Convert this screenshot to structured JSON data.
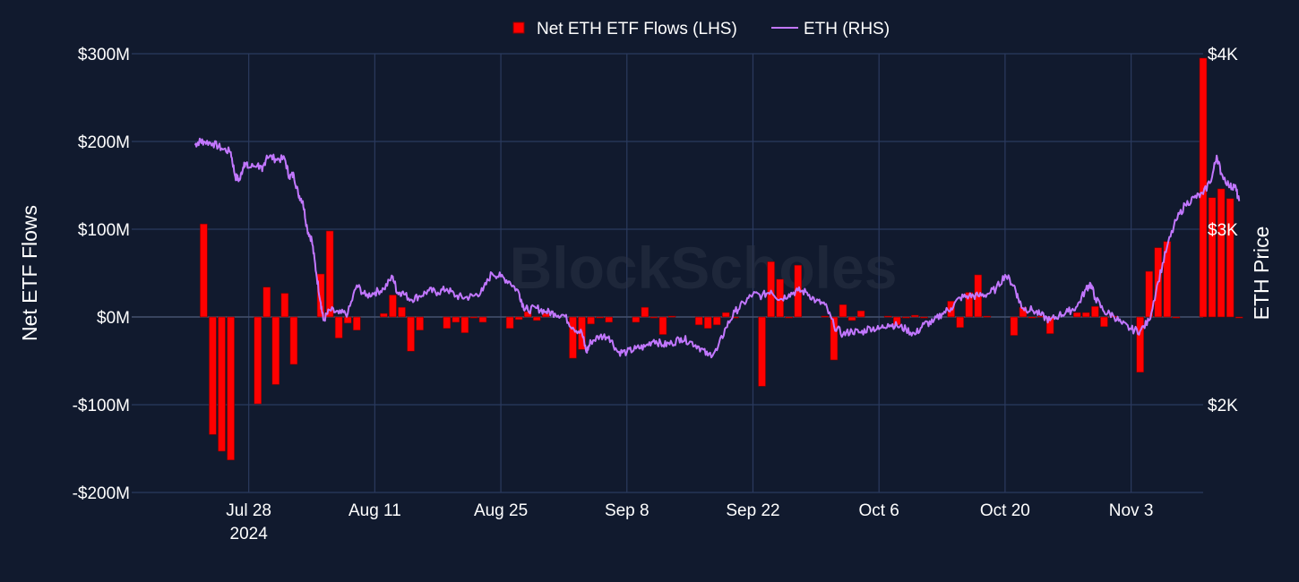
{
  "chart_data": {
    "type": "bar+line",
    "legend": [
      {
        "name": "Net ETH ETF Flows (LHS)",
        "color": "#ff0000",
        "marker": "square"
      },
      {
        "name": "ETH (RHS)",
        "color": "#c277ff",
        "marker": "line"
      }
    ],
    "watermark": "BlockScholes",
    "y_left": {
      "title": "Net ETF Flows",
      "range": [
        -200,
        300
      ],
      "unit": "USD millions",
      "ticks": [
        300,
        200,
        100,
        0,
        -100,
        -200
      ],
      "tick_labels": [
        "$300M",
        "$200M",
        "$100M",
        "$0M",
        "-$100M",
        "-$200M"
      ]
    },
    "y_right": {
      "title": "ETH Price",
      "range": [
        1500,
        4000
      ],
      "unit": "USD",
      "ticks": [
        4000,
        3000,
        2000
      ],
      "tick_labels": [
        "$4K",
        "$3K",
        "$2K"
      ]
    },
    "x": {
      "range_days": [
        -7,
        112
      ],
      "day0": "2024-07-22",
      "ticks": [
        {
          "day": 6,
          "label": "Jul 28",
          "sublabel": "2024"
        },
        {
          "day": 20,
          "label": "Aug 11"
        },
        {
          "day": 34,
          "label": "Aug 25"
        },
        {
          "day": 48,
          "label": "Sep 8"
        },
        {
          "day": 62,
          "label": "Sep 22"
        },
        {
          "day": 76,
          "label": "Oct 6"
        },
        {
          "day": 90,
          "label": "Oct 20"
        },
        {
          "day": 104,
          "label": "Nov 3"
        }
      ]
    },
    "flows_series": {
      "name": "Net ETH ETF Flows (LHS)",
      "unit": "USD millions",
      "points": [
        [
          1,
          106
        ],
        [
          2,
          -134
        ],
        [
          3,
          -153
        ],
        [
          4,
          -163
        ],
        [
          7,
          -99
        ],
        [
          8,
          34
        ],
        [
          9,
          -77
        ],
        [
          10,
          27
        ],
        [
          11,
          -54
        ],
        [
          14,
          49
        ],
        [
          15,
          98
        ],
        [
          16,
          -24
        ],
        [
          17,
          -7
        ],
        [
          18,
          -15
        ],
        [
          21,
          4
        ],
        [
          22,
          25
        ],
        [
          23,
          11
        ],
        [
          24,
          -39
        ],
        [
          25,
          -15
        ],
        [
          28,
          -13
        ],
        [
          29,
          -6
        ],
        [
          30,
          -18
        ],
        [
          31,
          0
        ],
        [
          32,
          -6
        ],
        [
          35,
          -13
        ],
        [
          36,
          -3
        ],
        [
          37,
          6
        ],
        [
          38,
          -4
        ],
        [
          39,
          4
        ],
        [
          42,
          -47
        ],
        [
          43,
          -37
        ],
        [
          44,
          -8
        ],
        [
          45,
          0
        ],
        [
          46,
          -6
        ],
        [
          49,
          -6
        ],
        [
          50,
          11
        ],
        [
          51,
          0
        ],
        [
          52,
          -20
        ],
        [
          53,
          1
        ],
        [
          56,
          -9
        ],
        [
          57,
          -13
        ],
        [
          58,
          -9
        ],
        [
          59,
          5
        ],
        [
          60,
          -1
        ],
        [
          63,
          -79
        ],
        [
          64,
          63
        ],
        [
          65,
          43
        ],
        [
          66,
          0
        ],
        [
          67,
          59
        ],
        [
          70,
          1
        ],
        [
          71,
          -49
        ],
        [
          72,
          14
        ],
        [
          73,
          -4
        ],
        [
          74,
          7
        ],
        [
          77,
          1
        ],
        [
          78,
          -9
        ],
        [
          79,
          0
        ],
        [
          80,
          2
        ],
        [
          81,
          -1
        ],
        [
          84,
          18
        ],
        [
          85,
          -12
        ],
        [
          86,
          28
        ],
        [
          87,
          48
        ],
        [
          88,
          1
        ],
        [
          91,
          -21
        ],
        [
          92,
          11
        ],
        [
          93,
          0
        ],
        [
          94,
          1
        ],
        [
          95,
          -19
        ],
        [
          98,
          5
        ],
        [
          99,
          5
        ],
        [
          100,
          12
        ],
        [
          101,
          -11
        ],
        [
          102,
          1
        ],
        [
          105,
          -63
        ],
        [
          106,
          52
        ],
        [
          107,
          79
        ],
        [
          108,
          86
        ],
        [
          109,
          0
        ],
        [
          112,
          295
        ],
        [
          113,
          136
        ],
        [
          114,
          146
        ],
        [
          115,
          135
        ],
        [
          116,
          -1
        ]
      ]
    },
    "price_series": {
      "name": "ETH (RHS)",
      "unit": "USD",
      "points": [
        [
          0,
          3480
        ],
        [
          0.5,
          3500
        ],
        [
          1,
          3500
        ],
        [
          2,
          3490
        ],
        [
          3,
          3460
        ],
        [
          4,
          3440
        ],
        [
          4.5,
          3300
        ],
        [
          5,
          3280
        ],
        [
          5.5,
          3380
        ],
        [
          6,
          3350
        ],
        [
          7,
          3370
        ],
        [
          7.5,
          3330
        ],
        [
          8,
          3420
        ],
        [
          9,
          3400
        ],
        [
          10,
          3400
        ],
        [
          10.5,
          3300
        ],
        [
          11,
          3310
        ],
        [
          11.5,
          3200
        ],
        [
          12,
          3160
        ],
        [
          12.5,
          3000
        ],
        [
          13,
          2940
        ],
        [
          13.5,
          2750
        ],
        [
          14,
          2580
        ],
        [
          14.3,
          2480
        ],
        [
          15,
          2540
        ],
        [
          16,
          2520
        ],
        [
          17,
          2520
        ],
        [
          18,
          2680
        ],
        [
          19,
          2620
        ],
        [
          20,
          2640
        ],
        [
          21,
          2660
        ],
        [
          22,
          2730
        ],
        [
          22.5,
          2640
        ],
        [
          23,
          2640
        ],
        [
          24,
          2600
        ],
        [
          25,
          2620
        ],
        [
          26,
          2650
        ],
        [
          27,
          2640
        ],
        [
          28,
          2660
        ],
        [
          29,
          2620
        ],
        [
          30,
          2610
        ],
        [
          31,
          2620
        ],
        [
          32,
          2650
        ],
        [
          33,
          2750
        ],
        [
          34,
          2730
        ],
        [
          35,
          2700
        ],
        [
          36,
          2640
        ],
        [
          36.5,
          2560
        ],
        [
          37,
          2540
        ],
        [
          38,
          2550
        ],
        [
          39,
          2530
        ],
        [
          40,
          2520
        ],
        [
          41,
          2510
        ],
        [
          42,
          2440
        ],
        [
          43,
          2410
        ],
        [
          43.5,
          2300
        ],
        [
          44,
          2360
        ],
        [
          45,
          2390
        ],
        [
          46,
          2390
        ],
        [
          47,
          2300
        ],
        [
          48,
          2300
        ],
        [
          49,
          2320
        ],
        [
          50,
          2330
        ],
        [
          51,
          2370
        ],
        [
          52,
          2340
        ],
        [
          53,
          2350
        ],
        [
          54,
          2380
        ],
        [
          55,
          2360
        ],
        [
          56,
          2330
        ],
        [
          57,
          2280
        ],
        [
          58,
          2310
        ],
        [
          59,
          2440
        ],
        [
          60,
          2530
        ],
        [
          61,
          2580
        ],
        [
          62,
          2630
        ],
        [
          63,
          2620
        ],
        [
          64,
          2650
        ],
        [
          65,
          2600
        ],
        [
          66,
          2630
        ],
        [
          67,
          2650
        ],
        [
          68,
          2640
        ],
        [
          69,
          2590
        ],
        [
          70,
          2570
        ],
        [
          71,
          2450
        ],
        [
          72,
          2400
        ],
        [
          73,
          2420
        ],
        [
          74,
          2410
        ],
        [
          75,
          2440
        ],
        [
          76,
          2430
        ],
        [
          77,
          2460
        ],
        [
          78,
          2450
        ],
        [
          79,
          2430
        ],
        [
          80,
          2400
        ],
        [
          81,
          2460
        ],
        [
          82,
          2470
        ],
        [
          83,
          2520
        ],
        [
          84,
          2550
        ],
        [
          85,
          2610
        ],
        [
          86,
          2620
        ],
        [
          87,
          2620
        ],
        [
          88,
          2630
        ],
        [
          89,
          2660
        ],
        [
          90,
          2740
        ],
        [
          91,
          2680
        ],
        [
          91.5,
          2600
        ],
        [
          92,
          2550
        ],
        [
          93,
          2540
        ],
        [
          94,
          2510
        ],
        [
          95,
          2480
        ],
        [
          96,
          2510
        ],
        [
          97,
          2530
        ],
        [
          98,
          2560
        ],
        [
          99,
          2660
        ],
        [
          99.5,
          2690
        ],
        [
          100,
          2610
        ],
        [
          101,
          2530
        ],
        [
          102,
          2510
        ],
        [
          103,
          2460
        ],
        [
          104,
          2430
        ],
        [
          105,
          2420
        ],
        [
          106,
          2480
        ],
        [
          107,
          2700
        ],
        [
          108,
          2900
        ],
        [
          109,
          3050
        ],
        [
          110,
          3140
        ],
        [
          111,
          3180
        ],
        [
          112,
          3200
        ],
        [
          113,
          3300
        ],
        [
          113.5,
          3420
        ],
        [
          114,
          3320
        ],
        [
          115,
          3240
        ],
        [
          115.5,
          3250
        ],
        [
          116,
          3160
        ]
      ]
    }
  }
}
